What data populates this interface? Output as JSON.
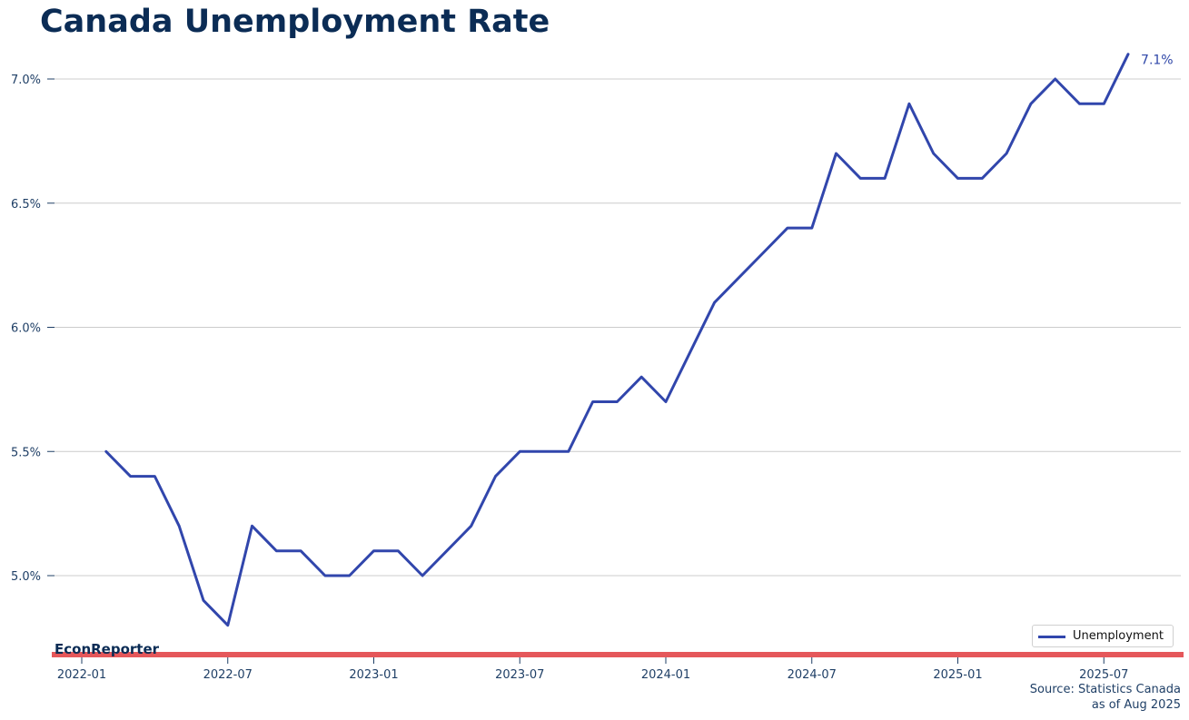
{
  "chart_data": {
    "type": "line",
    "title": "Canada Unemployment Rate",
    "xlabel": "",
    "ylabel": "",
    "y_format": "percent-1dp",
    "ylim": [
      4.7,
      7.15
    ],
    "y_ticks": [
      5.0,
      5.5,
      6.0,
      6.5,
      7.0
    ],
    "y_tick_labels": [
      "5.0%",
      "5.5%",
      "6.0%",
      "6.5%",
      "7.0%"
    ],
    "x_ticks": [
      "2022-01",
      "2022-07",
      "2023-01",
      "2023-07",
      "2024-01",
      "2024-07",
      "2025-01",
      "2025-07"
    ],
    "grid": "horizontal",
    "legend_position": "bottom-right",
    "series": [
      {
        "name": "Unemployment",
        "color": "#3146ac",
        "x": [
          "2022-02",
          "2022-03",
          "2022-04",
          "2022-05",
          "2022-06",
          "2022-07",
          "2022-08",
          "2022-09",
          "2022-10",
          "2022-11",
          "2022-12",
          "2023-01",
          "2023-02",
          "2023-03",
          "2023-04",
          "2023-05",
          "2023-06",
          "2023-07",
          "2023-08",
          "2023-09",
          "2023-10",
          "2023-11",
          "2023-12",
          "2024-01",
          "2024-02",
          "2024-03",
          "2024-04",
          "2024-05",
          "2024-06",
          "2024-07",
          "2024-08",
          "2024-09",
          "2024-10",
          "2024-11",
          "2024-12",
          "2025-01",
          "2025-02",
          "2025-03",
          "2025-04",
          "2025-05",
          "2025-06",
          "2025-07",
          "2025-08"
        ],
        "values": [
          5.5,
          5.4,
          5.4,
          5.2,
          4.9,
          4.8,
          5.2,
          5.1,
          5.1,
          5.0,
          5.0,
          5.1,
          5.1,
          5.0,
          5.1,
          5.2,
          5.4,
          5.5,
          5.5,
          5.5,
          5.7,
          5.7,
          5.8,
          5.7,
          5.9,
          6.1,
          6.2,
          6.3,
          6.4,
          6.4,
          6.7,
          6.6,
          6.6,
          6.9,
          6.7,
          6.6,
          6.6,
          6.7,
          6.9,
          7.0,
          6.9,
          6.9,
          7.1
        ]
      }
    ],
    "last_value_label": "7.1%",
    "brand": "EconReporter",
    "brand_bar_color": "#e5575a",
    "source": "Source: Statistics Canada",
    "date_note": "as of Aug 2025"
  }
}
